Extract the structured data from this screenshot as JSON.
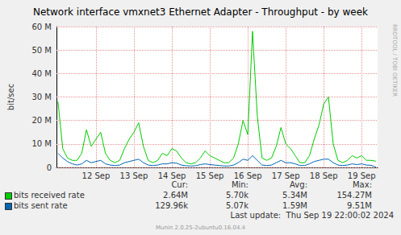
{
  "chart_data": {
    "type": "line",
    "title": "Network interface vmxnet3 Ethernet Adapter - Throughput - by week",
    "y_label": "bit/sec",
    "watermark": "RRDTOOL / TOBI OETIKER",
    "last_update": "Last update:  Thu Sep 19 22:00:02 2024",
    "generator": "Munin 2.0.25-2ubuntu0.16.04.4",
    "stats_headers": [
      "Cur:",
      "Min:",
      "Avg:",
      "Max:"
    ],
    "grid": true,
    "x": [
      11.5,
      11.625,
      11.75,
      11.875,
      12,
      12.125,
      12.25,
      12.375,
      12.5,
      12.625,
      12.75,
      12.875,
      13,
      13.125,
      13.25,
      13.375,
      13.5,
      13.625,
      13.75,
      13.875,
      14,
      14.125,
      14.25,
      14.375,
      14.5,
      14.625,
      14.75,
      14.875,
      15,
      15.125,
      15.25,
      15.375,
      15.5,
      15.625,
      15.75,
      15.875,
      16,
      16.125,
      16.25,
      16.375,
      16.5,
      16.625,
      16.75,
      16.875,
      17,
      17.125,
      17.25,
      17.375,
      17.5,
      17.625,
      17.75,
      17.875,
      18,
      18.125,
      18.25,
      18.375,
      18.5,
      18.625,
      18.75,
      18.875,
      19,
      19.125,
      19.25,
      19.375,
      19.5,
      19.625,
      19.75,
      19.875
    ],
    "xlim": [
      11.46,
      19.92
    ],
    "xticks": [
      {
        "value": 12.5,
        "label": "12 Sep"
      },
      {
        "value": 13.5,
        "label": "13 Sep"
      },
      {
        "value": 14.5,
        "label": "14 Sep"
      },
      {
        "value": 15.5,
        "label": "15 Sep"
      },
      {
        "value": 16.5,
        "label": "16 Sep"
      },
      {
        "value": 17.5,
        "label": "17 Sep"
      },
      {
        "value": 18.5,
        "label": "18 Sep"
      },
      {
        "value": 19.5,
        "label": "19 Sep"
      }
    ],
    "ylim": [
      0,
      60000000
    ],
    "yticks": [
      0,
      {
        "value": 10000000,
        "label": "10 M"
      },
      {
        "value": 20000000,
        "label": "20 M"
      },
      {
        "value": 30000000,
        "label": "30 M"
      },
      {
        "value": 40000000,
        "label": "40 M"
      },
      {
        "value": 50000000,
        "label": "50 M"
      },
      {
        "value": 60000000,
        "label": "60 M"
      }
    ],
    "series": [
      {
        "name": "bits received rate",
        "color": "#00cc00",
        "stats": [
          "2.64M",
          "5.70k",
          "5.34M",
          "154.27M"
        ],
        "values": [
          28000000,
          8000000,
          4000000,
          3000000,
          3000000,
          6000000,
          16000000,
          9000000,
          12000000,
          15000000,
          6000000,
          3000000,
          2000000,
          3000000,
          8000000,
          12000000,
          15000000,
          19000000,
          9000000,
          3000000,
          2000000,
          3000000,
          6000000,
          5000000,
          8000000,
          7000000,
          4000000,
          2000000,
          1500000,
          2000000,
          4000000,
          7000000,
          5000000,
          4000000,
          3000000,
          2000000,
          2000000,
          4000000,
          10000000,
          20000000,
          14000000,
          58000000,
          22000000,
          4000000,
          3000000,
          4000000,
          9000000,
          17000000,
          10000000,
          8000000,
          5000000,
          2000000,
          2000000,
          5000000,
          12000000,
          18000000,
          27000000,
          30000000,
          10000000,
          3000000,
          2000000,
          3000000,
          5000000,
          4000000,
          5000000,
          3000000,
          3000000,
          2640000
        ]
      },
      {
        "name": "bits sent rate",
        "color": "#0066b3",
        "stats": [
          "129.96k",
          "5.07k",
          "1.59M",
          "9.51M"
        ],
        "values": [
          6000000,
          4000000,
          2500000,
          1500000,
          1000000,
          1500000,
          3000000,
          2000000,
          2500000,
          3000000,
          1500000,
          1000000,
          800000,
          1000000,
          2000000,
          2500000,
          3000000,
          3500000,
          2000000,
          1000000,
          800000,
          1000000,
          1500000,
          1500000,
          2000000,
          1800000,
          1000000,
          700000,
          600000,
          700000,
          1200000,
          1500000,
          1200000,
          1000000,
          800000,
          600000,
          600000,
          1000000,
          2000000,
          3500000,
          3000000,
          5000000,
          3000000,
          1000000,
          800000,
          1000000,
          2000000,
          3000000,
          2000000,
          2000000,
          1500000,
          800000,
          800000,
          1500000,
          2500000,
          3000000,
          3500000,
          3500000,
          2000000,
          1000000,
          800000,
          1000000,
          1500000,
          1200000,
          1500000,
          1000000,
          900000,
          129960
        ]
      }
    ]
  }
}
